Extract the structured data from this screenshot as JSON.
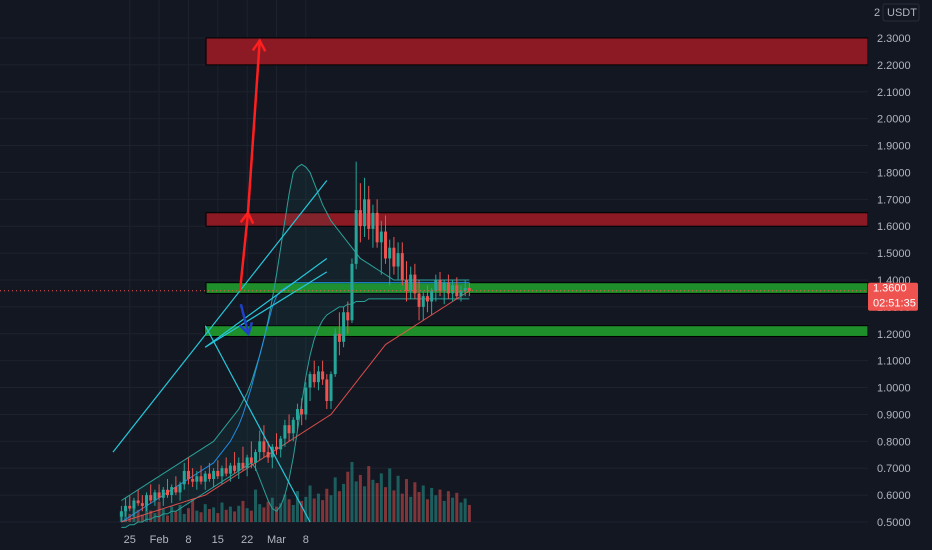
{
  "chart_data": {
    "type": "candlestick",
    "quote_currency": "USDT",
    "y_axis": {
      "min": 0.5,
      "max": 2.3,
      "ticks": [
        "0.5000",
        "0.6000",
        "0.7000",
        "0.8000",
        "0.9000",
        "1.0000",
        "1.1000",
        "1.2000",
        "1.3000",
        "1.4000",
        "1.5000",
        "1.6000",
        "1.7000",
        "1.8000",
        "1.9000",
        "2.0000",
        "2.1000",
        "2.2000",
        "2.3000"
      ],
      "top_partial_label": "2"
    },
    "x_axis": {
      "labels": [
        {
          "text": "25",
          "day": -7
        },
        {
          "text": "Feb",
          "day": 0
        },
        {
          "text": "8",
          "day": 7
        },
        {
          "text": "15",
          "day": 14
        },
        {
          "text": "22",
          "day": 21
        },
        {
          "text": "Mar",
          "day": 28
        },
        {
          "text": "8",
          "day": 35
        }
      ]
    },
    "current_price": "1.3600",
    "countdown": "02:51:35",
    "candles_ohlc": [
      [
        0.52,
        0.56,
        0.5,
        0.54
      ],
      [
        0.54,
        0.59,
        0.52,
        0.56
      ],
      [
        0.56,
        0.6,
        0.54,
        0.55
      ],
      [
        0.55,
        0.59,
        0.52,
        0.58
      ],
      [
        0.58,
        0.62,
        0.56,
        0.57
      ],
      [
        0.57,
        0.6,
        0.54,
        0.56
      ],
      [
        0.56,
        0.61,
        0.54,
        0.6
      ],
      [
        0.6,
        0.64,
        0.57,
        0.58
      ],
      [
        0.58,
        0.62,
        0.56,
        0.61
      ],
      [
        0.61,
        0.64,
        0.58,
        0.59
      ],
      [
        0.59,
        0.63,
        0.56,
        0.62
      ],
      [
        0.62,
        0.66,
        0.59,
        0.6
      ],
      [
        0.6,
        0.64,
        0.57,
        0.63
      ],
      [
        0.63,
        0.67,
        0.6,
        0.61
      ],
      [
        0.61,
        0.65,
        0.58,
        0.64
      ],
      [
        0.64,
        0.72,
        0.62,
        0.69
      ],
      [
        0.69,
        0.74,
        0.64,
        0.66
      ],
      [
        0.66,
        0.7,
        0.63,
        0.65
      ],
      [
        0.65,
        0.69,
        0.62,
        0.67
      ],
      [
        0.67,
        0.71,
        0.64,
        0.65
      ],
      [
        0.65,
        0.69,
        0.62,
        0.68
      ],
      [
        0.68,
        0.72,
        0.65,
        0.66
      ],
      [
        0.66,
        0.7,
        0.63,
        0.69
      ],
      [
        0.69,
        0.73,
        0.66,
        0.67
      ],
      [
        0.67,
        0.71,
        0.64,
        0.7
      ],
      [
        0.7,
        0.74,
        0.67,
        0.68
      ],
      [
        0.68,
        0.72,
        0.65,
        0.71
      ],
      [
        0.71,
        0.76,
        0.68,
        0.69
      ],
      [
        0.69,
        0.74,
        0.66,
        0.72
      ],
      [
        0.72,
        0.78,
        0.69,
        0.7
      ],
      [
        0.7,
        0.75,
        0.67,
        0.74
      ],
      [
        0.74,
        0.8,
        0.7,
        0.72
      ],
      [
        0.72,
        0.77,
        0.69,
        0.76
      ],
      [
        0.76,
        0.84,
        0.73,
        0.8
      ],
      [
        0.8,
        0.86,
        0.74,
        0.76
      ],
      [
        0.76,
        0.8,
        0.72,
        0.74
      ],
      [
        0.74,
        0.79,
        0.7,
        0.78
      ],
      [
        0.78,
        0.83,
        0.75,
        0.77
      ],
      [
        0.77,
        0.82,
        0.74,
        0.81
      ],
      [
        0.81,
        0.88,
        0.78,
        0.86
      ],
      [
        0.86,
        0.9,
        0.8,
        0.83
      ],
      [
        0.83,
        0.89,
        0.8,
        0.88
      ],
      [
        0.88,
        0.94,
        0.84,
        0.92
      ],
      [
        0.92,
        0.96,
        0.86,
        0.9
      ],
      [
        0.9,
        1.02,
        0.88,
        1.0
      ],
      [
        1.0,
        1.06,
        0.95,
        1.05
      ],
      [
        1.05,
        1.1,
        1.0,
        1.02
      ],
      [
        1.02,
        1.08,
        0.99,
        1.06
      ],
      [
        1.06,
        1.1,
        1.01,
        1.03
      ],
      [
        1.03,
        1.05,
        0.92,
        0.95
      ],
      [
        0.95,
        1.06,
        0.92,
        1.05
      ],
      [
        1.05,
        1.22,
        1.04,
        1.2
      ],
      [
        1.2,
        1.28,
        1.12,
        1.17
      ],
      [
        1.17,
        1.3,
        1.15,
        1.28
      ],
      [
        1.28,
        1.32,
        1.2,
        1.25
      ],
      [
        1.25,
        1.48,
        1.24,
        1.46
      ],
      [
        1.46,
        1.84,
        1.44,
        1.66
      ],
      [
        1.66,
        1.76,
        1.54,
        1.6
      ],
      [
        1.6,
        1.78,
        1.56,
        1.7
      ],
      [
        1.7,
        1.75,
        1.55,
        1.59
      ],
      [
        1.59,
        1.68,
        1.52,
        1.65
      ],
      [
        1.65,
        1.7,
        1.52,
        1.54
      ],
      [
        1.54,
        1.62,
        1.42,
        1.58
      ],
      [
        1.58,
        1.64,
        1.46,
        1.48
      ],
      [
        1.48,
        1.55,
        1.38,
        1.52
      ],
      [
        1.52,
        1.56,
        1.42,
        1.45
      ],
      [
        1.45,
        1.54,
        1.4,
        1.5
      ],
      [
        1.5,
        1.54,
        1.38,
        1.4
      ],
      [
        1.4,
        1.47,
        1.32,
        1.36
      ],
      [
        1.36,
        1.45,
        1.33,
        1.42
      ],
      [
        1.42,
        1.46,
        1.33,
        1.35
      ],
      [
        1.35,
        1.4,
        1.25,
        1.3
      ],
      [
        1.3,
        1.36,
        1.25,
        1.34
      ],
      [
        1.34,
        1.38,
        1.28,
        1.32
      ],
      [
        1.32,
        1.37,
        1.27,
        1.36
      ],
      [
        1.36,
        1.42,
        1.32,
        1.4
      ],
      [
        1.4,
        1.43,
        1.34,
        1.36
      ],
      [
        1.36,
        1.4,
        1.31,
        1.39
      ],
      [
        1.39,
        1.42,
        1.33,
        1.35
      ],
      [
        1.35,
        1.4,
        1.32,
        1.38
      ],
      [
        1.38,
        1.41,
        1.33,
        1.34
      ],
      [
        1.34,
        1.38,
        1.32,
        1.36
      ],
      [
        1.36,
        1.4,
        1.34,
        1.37
      ],
      [
        1.37,
        1.39,
        1.34,
        1.36
      ]
    ],
    "volume": [
      12,
      18,
      10,
      22,
      15,
      9,
      20,
      14,
      11,
      25,
      16,
      8,
      19,
      13,
      21,
      10,
      17,
      28,
      14,
      12,
      22,
      16,
      18,
      11,
      24,
      15,
      19,
      13,
      20,
      26,
      17,
      14,
      40,
      22,
      18,
      25,
      30,
      19,
      23,
      34,
      28,
      21,
      38,
      26,
      31,
      45,
      29,
      35,
      27,
      41,
      33,
      55,
      38,
      47,
      62,
      74,
      50,
      58,
      44,
      69,
      52,
      48,
      60,
      43,
      66,
      39,
      57,
      35,
      53,
      31,
      49,
      37,
      45,
      28,
      42,
      33,
      40,
      26,
      38,
      30,
      36,
      24,
      29,
      21
    ],
    "ma_lines": [
      {
        "color": "#2196f3",
        "values": [
          0.5,
          0.51,
          0.52,
          0.53,
          0.54,
          0.55,
          0.56,
          0.57,
          0.58,
          0.59,
          0.6,
          0.61,
          0.62,
          0.63,
          0.64,
          0.65,
          0.66,
          0.67,
          0.68,
          0.69,
          0.7,
          0.71,
          0.72,
          0.74,
          0.76,
          0.78,
          0.8,
          0.83,
          0.86,
          0.9,
          0.95,
          1.0,
          1.06,
          1.12,
          1.18,
          1.24,
          1.3,
          1.34,
          1.36,
          1.37,
          1.38,
          1.39,
          1.39,
          1.39,
          1.39,
          1.39,
          1.39,
          1.39,
          1.39,
          1.39,
          1.39,
          1.39,
          1.39,
          1.39,
          1.39,
          1.39,
          1.39,
          1.39,
          1.39,
          1.39,
          1.39,
          1.39,
          1.39,
          1.39,
          1.39,
          1.39,
          1.39,
          1.39,
          1.39,
          1.39,
          1.39,
          1.39,
          1.39,
          1.39,
          1.39,
          1.39,
          1.39,
          1.39,
          1.39,
          1.39,
          1.39,
          1.39,
          1.39,
          1.39
        ]
      },
      {
        "color": "#ef5350",
        "values": [
          0.5,
          0.505,
          0.51,
          0.515,
          0.52,
          0.525,
          0.53,
          0.535,
          0.54,
          0.545,
          0.55,
          0.555,
          0.56,
          0.565,
          0.57,
          0.575,
          0.58,
          0.585,
          0.59,
          0.595,
          0.6,
          0.61,
          0.62,
          0.63,
          0.64,
          0.65,
          0.66,
          0.67,
          0.68,
          0.69,
          0.7,
          0.71,
          0.72,
          0.73,
          0.74,
          0.75,
          0.76,
          0.77,
          0.78,
          0.79,
          0.8,
          0.81,
          0.82,
          0.83,
          0.84,
          0.85,
          0.86,
          0.87,
          0.88,
          0.89,
          0.9,
          0.92,
          0.94,
          0.96,
          0.98,
          1.0,
          1.02,
          1.04,
          1.06,
          1.08,
          1.1,
          1.12,
          1.14,
          1.16,
          1.17,
          1.18,
          1.19,
          1.2,
          1.21,
          1.22,
          1.23,
          1.24,
          1.25,
          1.26,
          1.27,
          1.28,
          1.29,
          1.3,
          1.31,
          1.32,
          1.33,
          1.34,
          1.35,
          1.36
        ]
      }
    ],
    "bollinger": {
      "color": "#2aa198",
      "upper": [
        0.58,
        0.59,
        0.6,
        0.61,
        0.62,
        0.63,
        0.64,
        0.65,
        0.66,
        0.67,
        0.68,
        0.69,
        0.7,
        0.71,
        0.72,
        0.73,
        0.74,
        0.75,
        0.76,
        0.77,
        0.78,
        0.79,
        0.8,
        0.82,
        0.84,
        0.86,
        0.88,
        0.9,
        0.92,
        0.95,
        0.98,
        1.02,
        1.07,
        1.12,
        1.18,
        1.25,
        1.33,
        1.42,
        1.52,
        1.62,
        1.72,
        1.8,
        1.82,
        1.83,
        1.82,
        1.8,
        1.76,
        1.72,
        1.68,
        1.65,
        1.62,
        1.6,
        1.58,
        1.56,
        1.54,
        1.52,
        1.5,
        1.48,
        1.47,
        1.46,
        1.45,
        1.44,
        1.43,
        1.42,
        1.41,
        1.4,
        1.4,
        1.4,
        1.4,
        1.4,
        1.4,
        1.4,
        1.4,
        1.4,
        1.4,
        1.4,
        1.4,
        1.4,
        1.4,
        1.4,
        1.4,
        1.4,
        1.4,
        1.4
      ],
      "lower": [
        0.48,
        0.48,
        0.49,
        0.49,
        0.5,
        0.5,
        0.51,
        0.51,
        0.52,
        0.52,
        0.53,
        0.53,
        0.54,
        0.54,
        0.55,
        0.56,
        0.57,
        0.58,
        0.59,
        0.6,
        0.61,
        0.62,
        0.63,
        0.64,
        0.65,
        0.66,
        0.67,
        0.68,
        0.69,
        0.7,
        0.71,
        0.72,
        0.7,
        0.66,
        0.62,
        0.58,
        0.55,
        0.54,
        0.56,
        0.6,
        0.66,
        0.74,
        0.84,
        0.94,
        1.04,
        1.12,
        1.18,
        1.22,
        1.25,
        1.27,
        1.28,
        1.29,
        1.3,
        1.3,
        1.31,
        1.31,
        1.32,
        1.32,
        1.32,
        1.33,
        1.33,
        1.33,
        1.33,
        1.33,
        1.33,
        1.33,
        1.33,
        1.33,
        1.33,
        1.33,
        1.33,
        1.33,
        1.33,
        1.33,
        1.33,
        1.33,
        1.33,
        1.33,
        1.33,
        1.33,
        1.33,
        1.33,
        1.33,
        1.33
      ]
    },
    "zones": [
      {
        "name": "resistance-upper",
        "color": "#8b1a24",
        "y_top": 2.3,
        "y_bottom": 2.2
      },
      {
        "name": "resistance-mid",
        "color": "#8b1a24",
        "y_top": 1.65,
        "y_bottom": 1.6
      },
      {
        "name": "support-upper",
        "color": "#1e8f2a",
        "y_top": 1.39,
        "y_bottom": 1.35
      },
      {
        "name": "support-lower",
        "color": "#1e8f2a",
        "y_top": 1.23,
        "y_bottom": 1.19
      }
    ],
    "trendlines": [
      {
        "color": "#26c6da",
        "from": {
          "day": -11,
          "price": 0.76
        },
        "to": {
          "day": 40,
          "price": 1.77
        }
      },
      {
        "color": "#26c6da",
        "from": {
          "day": 11,
          "price": 1.15
        },
        "to": {
          "day": 40,
          "price": 1.48
        }
      },
      {
        "color": "#26c6da",
        "from": {
          "day": 11,
          "price": 1.15
        },
        "to": {
          "day": 40,
          "price": 1.43
        }
      },
      {
        "color": "#26c6da",
        "from": {
          "day": 11,
          "price": 1.23
        },
        "to": {
          "day": 36,
          "price": 0.5
        }
      }
    ],
    "arrows": [
      {
        "color": "#ff1f1f",
        "points": [
          {
            "day": 19.3,
            "price": 1.36
          },
          {
            "day": 21.2,
            "price": 1.65
          }
        ]
      },
      {
        "color": "#ff1f1f",
        "points": [
          {
            "day": 21.2,
            "price": 1.65
          },
          {
            "day": 24,
            "price": 2.29
          }
        ]
      },
      {
        "color": "#1e40c8",
        "points": [
          {
            "day": 19.5,
            "price": 1.31
          },
          {
            "day": 21.3,
            "price": 1.2
          }
        ]
      }
    ]
  },
  "colors": {
    "background": "#131722",
    "grid": "#1e222d",
    "up": "#26a69a",
    "down": "#ef5350",
    "axis_text": "#b2b5be",
    "price_tag": "#ef5350"
  }
}
